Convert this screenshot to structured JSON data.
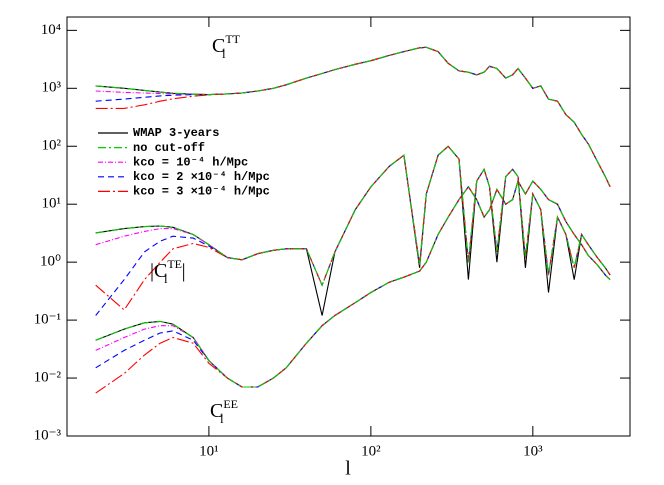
{
  "chart_data": {
    "type": "line",
    "xlabel": "l",
    "log_x": true,
    "log_y": true,
    "xlim": [
      1.33,
      3980
    ],
    "ylim": [
      0.001,
      17000
    ],
    "xticks": [
      {
        "value": 10,
        "label": "10¹"
      },
      {
        "value": 100,
        "label": "10²"
      },
      {
        "value": 1000,
        "label": "10³"
      }
    ],
    "yticks": [
      {
        "value": 0.001,
        "label": "10⁻³"
      },
      {
        "value": 0.01,
        "label": "10⁻²"
      },
      {
        "value": 0.1,
        "label": "10⁻¹"
      },
      {
        "value": 1,
        "label": "10⁰"
      },
      {
        "value": 10,
        "label": "10¹"
      },
      {
        "value": 100,
        "label": "10²"
      },
      {
        "value": 1000,
        "label": "10³"
      },
      {
        "value": 10000,
        "label": "10⁴"
      }
    ],
    "legend": "upper left",
    "annotations": [
      {
        "base": "C",
        "sub": "l",
        "sup": "TT"
      },
      {
        "base": "|C",
        "sub": "l",
        "sup": "TE",
        "end": "|"
      },
      {
        "base": "C",
        "sub": "l",
        "sup": "EE"
      }
    ],
    "x": [
      2,
      3,
      4,
      5,
      6,
      8,
      10,
      13,
      16,
      20,
      25,
      30,
      40,
      50,
      60,
      80,
      100,
      130,
      160,
      200,
      220,
      260,
      300,
      350,
      400,
      450,
      500,
      540,
      600,
      680,
      750,
      810,
      900,
      1000,
      1120,
      1250,
      1420,
      1600,
      1800,
      2000,
      2200,
      2500,
      2800,
      3000
    ],
    "series": [
      {
        "name": "WMAP 3-years",
        "color": "#000000",
        "dash": "none",
        "TT": [
          1100,
          1000,
          920,
          860,
          820,
          790,
          780,
          800,
          830,
          900,
          1000,
          1150,
          1500,
          1800,
          2100,
          2600,
          3000,
          3700,
          4300,
          5000,
          5100,
          4300,
          2700,
          2000,
          1900,
          1700,
          1900,
          2400,
          2200,
          1500,
          1700,
          2200,
          1500,
          1000,
          1100,
          650,
          600,
          350,
          260,
          160,
          110,
          55,
          30,
          20
        ],
        "TE": [
          3.2,
          3.8,
          4.1,
          4.2,
          4.0,
          3.0,
          2.0,
          1.2,
          1.1,
          1.4,
          1.6,
          1.7,
          1.7,
          0.12,
          1.5,
          8,
          20,
          45,
          70,
          0.8,
          15,
          70,
          100,
          60,
          0.5,
          25,
          40,
          20,
          1,
          30,
          40,
          30,
          0.8,
          15,
          8,
          0.3,
          6,
          3,
          0.5,
          3,
          2,
          1.2,
          0.8,
          0.6
        ],
        "EE": [
          0.045,
          0.07,
          0.09,
          0.095,
          0.085,
          0.05,
          0.02,
          0.01,
          0.007,
          0.007,
          0.01,
          0.015,
          0.04,
          0.08,
          0.12,
          0.2,
          0.3,
          0.45,
          0.55,
          0.7,
          1,
          3,
          6,
          12,
          20,
          12,
          6,
          8,
          18,
          10,
          12,
          25,
          15,
          25,
          18,
          12,
          10,
          5,
          3,
          2,
          1.3,
          0.9,
          0.6,
          0.5
        ]
      },
      {
        "name": "no cut-off",
        "color": "#00cc00",
        "dash": "8 3 2 3",
        "TT": [
          1100,
          1000,
          920,
          860,
          820,
          790,
          780,
          800,
          830,
          900,
          1000,
          1150,
          1500,
          1800,
          2100,
          2600,
          3000,
          3700,
          4300,
          5000,
          5100,
          4300,
          2700,
          2000,
          1900,
          1700,
          1900,
          2400,
          2200,
          1500,
          1700,
          2200,
          1500,
          1000,
          1100,
          650,
          600,
          350,
          260,
          160,
          110,
          55,
          30,
          20
        ],
        "TE": [
          3.2,
          3.8,
          4.1,
          4.2,
          4.0,
          3.0,
          2.0,
          1.2,
          1.1,
          1.4,
          1.6,
          1.7,
          1.7,
          0.4,
          1.5,
          8,
          20,
          45,
          70,
          0.9,
          15,
          70,
          100,
          60,
          1,
          25,
          40,
          20,
          1.5,
          30,
          40,
          30,
          1.2,
          15,
          8,
          0.6,
          6,
          3,
          0.8,
          3,
          2,
          1.2,
          0.8,
          0.6
        ],
        "EE": [
          0.045,
          0.07,
          0.09,
          0.095,
          0.085,
          0.05,
          0.02,
          0.01,
          0.007,
          0.007,
          0.01,
          0.015,
          0.04,
          0.08,
          0.12,
          0.2,
          0.3,
          0.45,
          0.55,
          0.7,
          1,
          3,
          6,
          12,
          20,
          12,
          6,
          8,
          18,
          10,
          12,
          25,
          15,
          25,
          18,
          12,
          10,
          5,
          3,
          2,
          1.3,
          0.9,
          0.6,
          0.5
        ]
      },
      {
        "name": "kco = 10⁻⁴ h/Mpc",
        "color": "#ff00ff",
        "dash": "5 2 1 2",
        "TT": [
          900,
          850,
          830,
          810,
          800,
          790,
          780,
          800,
          830,
          900,
          1000,
          1150,
          1500,
          1800,
          2100,
          2600,
          3000,
          3700,
          4300,
          5000,
          5100,
          4300,
          2700,
          2000,
          1900,
          1700,
          1900,
          2400,
          2200,
          1500,
          1700,
          2200,
          1500,
          1000,
          1100,
          650,
          600,
          350,
          260,
          160,
          110,
          55,
          30,
          20
        ],
        "TE": [
          2.0,
          2.8,
          3.4,
          3.8,
          3.8,
          3.0,
          2.0,
          1.2,
          1.1,
          1.4,
          1.6,
          1.7,
          1.7,
          0.4,
          1.5,
          8,
          20,
          45,
          70,
          0.9,
          15,
          70,
          100,
          60,
          1,
          25,
          40,
          20,
          1.5,
          30,
          40,
          30,
          1.2,
          15,
          8,
          0.6,
          6,
          3,
          0.8,
          3,
          2,
          1.2,
          0.8,
          0.6
        ],
        "EE": [
          0.03,
          0.05,
          0.07,
          0.08,
          0.08,
          0.05,
          0.02,
          0.01,
          0.007,
          0.007,
          0.01,
          0.015,
          0.04,
          0.08,
          0.12,
          0.2,
          0.3,
          0.45,
          0.55,
          0.7,
          1,
          3,
          6,
          12,
          20,
          12,
          6,
          8,
          18,
          10,
          12,
          25,
          15,
          25,
          18,
          12,
          10,
          5,
          3,
          2,
          1.3,
          0.9,
          0.6,
          0.5
        ]
      },
      {
        "name": "kco = 2 ×10⁻⁴ h/Mpc",
        "color": "#0000ff",
        "dash": "6 4",
        "TT": [
          600,
          650,
          700,
          740,
          760,
          780,
          780,
          800,
          830,
          900,
          1000,
          1150,
          1500,
          1800,
          2100,
          2600,
          3000,
          3700,
          4300,
          5000,
          5100,
          4300,
          2700,
          2000,
          1900,
          1700,
          1900,
          2400,
          2200,
          1500,
          1700,
          2200,
          1500,
          1000,
          1100,
          650,
          600,
          350,
          260,
          160,
          110,
          55,
          30,
          20
        ],
        "TE": [
          0.12,
          0.5,
          1.5,
          2.3,
          2.8,
          2.6,
          1.9,
          1.2,
          1.1,
          1.4,
          1.6,
          1.7,
          1.7,
          0.4,
          1.5,
          8,
          20,
          45,
          70,
          0.9,
          15,
          70,
          100,
          60,
          1,
          25,
          40,
          20,
          1.5,
          30,
          40,
          30,
          1.2,
          15,
          8,
          0.6,
          6,
          3,
          0.8,
          3,
          2,
          1.2,
          0.8,
          0.6
        ],
        "EE": [
          0.015,
          0.03,
          0.045,
          0.06,
          0.065,
          0.045,
          0.02,
          0.01,
          0.007,
          0.007,
          0.01,
          0.015,
          0.04,
          0.08,
          0.12,
          0.2,
          0.3,
          0.45,
          0.55,
          0.7,
          1,
          3,
          6,
          12,
          20,
          12,
          6,
          8,
          18,
          10,
          12,
          25,
          15,
          25,
          18,
          12,
          10,
          5,
          3,
          2,
          1.3,
          0.9,
          0.6,
          0.5
        ]
      },
      {
        "name": "kco = 3 ×10⁻⁴ h/Mpc",
        "color": "#ff0000",
        "dash": "12 3 2 3",
        "TT": [
          450,
          450,
          520,
          600,
          660,
          730,
          770,
          800,
          830,
          900,
          1000,
          1150,
          1500,
          1800,
          2100,
          2600,
          3000,
          3700,
          4300,
          5000,
          5100,
          4300,
          2700,
          2000,
          1900,
          1700,
          1900,
          2400,
          2200,
          1500,
          1700,
          2200,
          1500,
          1000,
          1100,
          650,
          600,
          350,
          260,
          160,
          110,
          55,
          30,
          20
        ],
        "TE": [
          0.4,
          0.15,
          0.5,
          1.0,
          1.7,
          2.1,
          1.8,
          1.2,
          1.1,
          1.4,
          1.6,
          1.7,
          1.7,
          0.4,
          1.5,
          8,
          20,
          45,
          70,
          0.9,
          15,
          70,
          100,
          60,
          1,
          25,
          40,
          20,
          1.5,
          30,
          40,
          30,
          1.2,
          15,
          8,
          0.6,
          6,
          3,
          0.8,
          3,
          2,
          1.2,
          0.8,
          0.6
        ],
        "EE": [
          0.0055,
          0.012,
          0.025,
          0.04,
          0.05,
          0.04,
          0.018,
          0.01,
          0.007,
          0.007,
          0.01,
          0.015,
          0.04,
          0.08,
          0.12,
          0.2,
          0.3,
          0.45,
          0.55,
          0.7,
          1,
          3,
          6,
          12,
          20,
          12,
          6,
          8,
          18,
          10,
          12,
          25,
          15,
          25,
          18,
          12,
          10,
          5,
          3,
          2,
          1.3,
          0.9,
          0.6,
          0.5
        ]
      }
    ]
  }
}
